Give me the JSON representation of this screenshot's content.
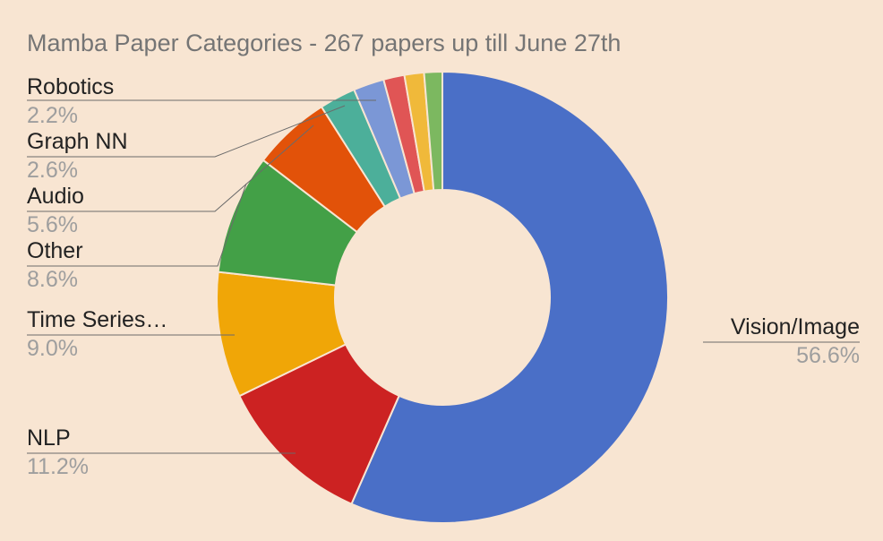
{
  "chart_data": {
    "type": "pie",
    "variant": "donut",
    "title": "Mamba Paper Categories - 267 papers up till June 27th",
    "slices": [
      {
        "label": "Vision/Image",
        "percent_label": "56.6%",
        "value": 56.6,
        "color": "#4a6fc7"
      },
      {
        "label": "NLP",
        "percent_label": "11.2%",
        "value": 11.2,
        "color": "#cc2222"
      },
      {
        "label": "Time Series…",
        "percent_label": "9.0%",
        "value": 9.0,
        "color": "#f0a607"
      },
      {
        "label": "Other",
        "percent_label": "8.6%",
        "value": 8.6,
        "color": "#43a047"
      },
      {
        "label": "Audio",
        "percent_label": "5.6%",
        "value": 5.6,
        "color": "#e25209"
      },
      {
        "label": "Graph NN",
        "percent_label": "2.6%",
        "value": 2.6,
        "color": "#4caf9a"
      },
      {
        "label": "Robotics",
        "percent_label": "2.2%",
        "value": 2.2,
        "color": "#7b97d6"
      },
      {
        "label": "",
        "percent_label": "",
        "value": 1.5,
        "color": "#e05555"
      },
      {
        "label": "",
        "percent_label": "",
        "value": 1.4,
        "color": "#f0b93a"
      },
      {
        "label": "",
        "percent_label": "",
        "value": 1.3,
        "color": "#7cb860"
      }
    ],
    "legend": "labels-with-leader-lines"
  }
}
